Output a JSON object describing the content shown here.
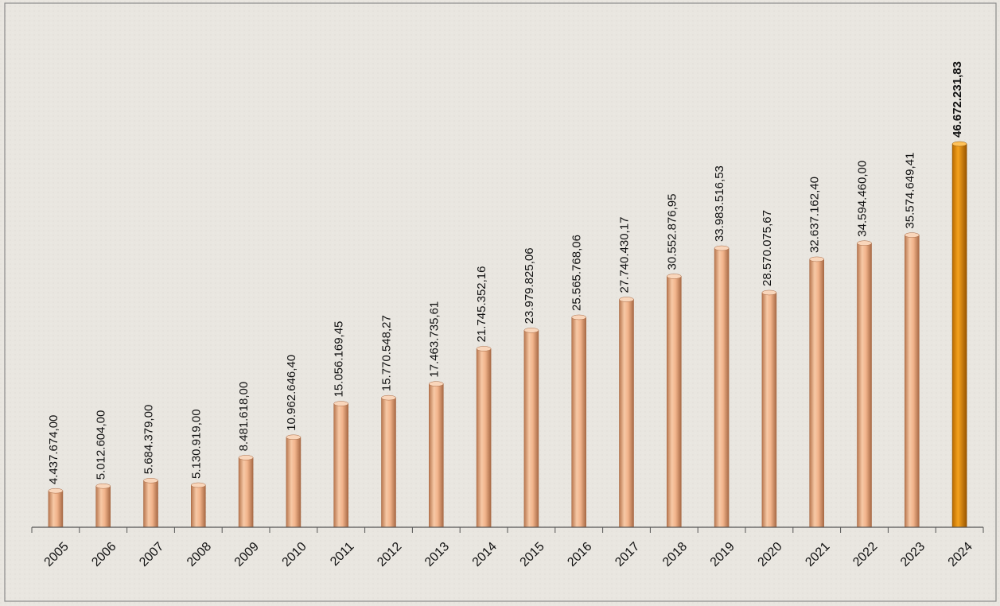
{
  "chart_data": {
    "type": "bar",
    "title": "",
    "xlabel": "",
    "ylabel": "",
    "categories": [
      "2005",
      "2006",
      "2007",
      "2008",
      "2009",
      "2010",
      "2011",
      "2012",
      "2013",
      "2014",
      "2015",
      "2016",
      "2017",
      "2018",
      "2019",
      "2020",
      "2021",
      "2022",
      "2023",
      "2024"
    ],
    "values": [
      4437674.0,
      5012604.0,
      5684379.0,
      5130919.0,
      8481618.0,
      10962646.4,
      15056169.45,
      15770548.27,
      17463735.61,
      21745352.16,
      23979825.06,
      25565768.06,
      27740430.17,
      30552876.95,
      33983516.53,
      28570075.67,
      32637162.4,
      34594460.0,
      35574649.41,
      46672231.83
    ],
    "value_labels": [
      "4.437.674,00",
      "5.012.604,00",
      "5.684.379,00",
      "5.130.919,00",
      "8.481.618,00",
      "10.962.646,40",
      "15.056.169,45",
      "15.770.548,27",
      "17.463.735,61",
      "21.745.352,16",
      "23.979.825,06",
      "25.565.768,06",
      "27.740.430,17",
      "30.552.876,95",
      "33.983.516,53",
      "28.570.075,67",
      "32.637.162,40",
      "34.594.460,00",
      "35.574.649,41",
      "46.672.231,83"
    ],
    "highlight_index": 19,
    "ylim": [
      0,
      46672231.83
    ],
    "grid": false,
    "colors": {
      "bar": "#f2b48c",
      "bar_edge": "#a86a45",
      "highlight": "#e08a0c",
      "highlight_edge": "#8a4f00",
      "axis": "#555555",
      "frame": "#777777"
    }
  }
}
